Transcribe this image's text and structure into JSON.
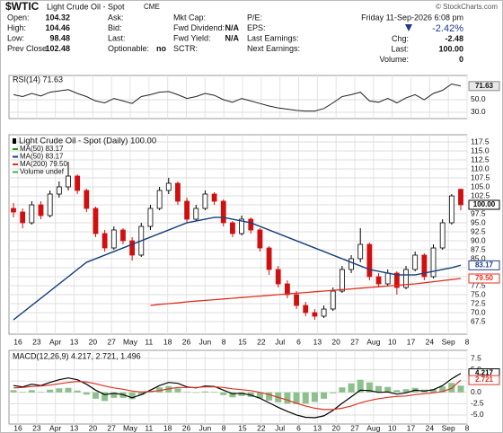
{
  "header": {
    "symbol": "$WTIC",
    "name": "Light Crude Oil - Spot",
    "exchange": "CME",
    "copyright": "© StockCharts.com",
    "date": "Friday  11-Sep-2026  6:08 pm",
    "change_pct": "-2.42%",
    "columns": [
      [
        [
          "Open:",
          "104.32"
        ],
        [
          "High:",
          "104.46"
        ],
        [
          "Low:",
          "98.48"
        ],
        [
          "Prev Close:",
          "102.48"
        ]
      ],
      [
        [
          "Ask:"
        ],
        [
          "Bid:"
        ],
        [
          "Last:"
        ],
        [
          "Optionable:",
          "no"
        ]
      ],
      [
        [
          "Mkt Cap:"
        ],
        [
          "Fwd Dividend:",
          "N/A"
        ],
        [
          "Fwd Yield:",
          "N/A"
        ],
        [
          "SCTR:"
        ]
      ],
      [
        [
          "P/E:"
        ],
        [
          "EPS:"
        ],
        [
          "Last Earnings:"
        ],
        [
          "Next Earnings:"
        ]
      ]
    ],
    "right": [
      [
        "Chg:",
        "-2.48"
      ],
      [
        "Last:",
        "100.00"
      ],
      [
        "Volume:",
        "0"
      ]
    ]
  },
  "chart_data": [
    {
      "type": "line",
      "name": "RSI(14) 71.63",
      "color": "#222222",
      "ylim": [
        20,
        88.5
      ],
      "yticks": [
        {
          "value": 50,
          "label": "50.0"
        },
        {
          "value": 30,
          "label": "30.0"
        }
      ],
      "grid": true,
      "values": [
        58,
        55,
        60,
        56,
        62,
        64,
        66,
        60,
        55,
        48,
        45,
        52,
        48,
        44,
        55,
        58,
        62,
        63,
        58,
        52,
        55,
        60,
        57,
        50,
        46,
        52,
        48,
        44,
        40,
        37,
        35,
        33,
        32,
        32,
        36,
        45,
        55,
        58,
        62,
        48,
        46,
        52,
        45,
        53,
        58,
        50,
        60,
        65,
        75,
        71.63
      ]
    },
    {
      "type": "candlestick",
      "name": "Light Crude Oil - Spot (Daily) 100.00",
      "last_label": "100.00",
      "up_color": "#000000",
      "down_color": "#d01010",
      "ylim": [
        64,
        119.5
      ],
      "grid": true,
      "yticks": [
        67.5,
        {
          "value": 70,
          "label": "70.0"
        },
        72.5,
        {
          "value": 75,
          "label": "75.0"
        },
        77.5,
        {
          "value": 80,
          "label": "80.0"
        },
        82.5,
        {
          "value": 85,
          "label": "85.0"
        },
        87.5,
        {
          "value": 90,
          "label": "90.0"
        },
        92.5,
        {
          "value": 95,
          "label": "95.0"
        },
        97.5,
        {
          "value": 100,
          "label": "100.0"
        },
        102.5,
        {
          "value": 105,
          "label": "105.0"
        },
        107.5,
        {
          "value": 110,
          "label": "110.0"
        },
        112.5,
        {
          "value": 115,
          "label": "115.0"
        },
        117.5
      ],
      "x_labels": [
        "16",
        "23",
        "Apr",
        "13",
        "20",
        "27",
        "May",
        "11",
        "18",
        "26",
        "Jun",
        "8",
        "15",
        "22",
        "Jul",
        "6",
        "13",
        "20",
        "27",
        "Aug",
        "10",
        "17",
        "24",
        "Sep",
        "8"
      ],
      "candles": [
        [
          99,
          100.5,
          96.5,
          98
        ],
        [
          98,
          99,
          93.5,
          95
        ],
        [
          95,
          101,
          94.5,
          100
        ],
        [
          100,
          101,
          96,
          97
        ],
        [
          97,
          104,
          96.5,
          103
        ],
        [
          103,
          106.5,
          102,
          105
        ],
        [
          105,
          112,
          104,
          108
        ],
        [
          108,
          108.5,
          103,
          104
        ],
        [
          104,
          104.5,
          98,
          99
        ],
        [
          99,
          99.5,
          91,
          92
        ],
        [
          92,
          93,
          87,
          88
        ],
        [
          88,
          94,
          87.5,
          93
        ],
        [
          93,
          93.5,
          89,
          90
        ],
        [
          90,
          91,
          84.5,
          86
        ],
        [
          86,
          95,
          85.5,
          94
        ],
        [
          94,
          100,
          93,
          99
        ],
        [
          99,
          105,
          98.5,
          104
        ],
        [
          104,
          107.5,
          103,
          106
        ],
        [
          106,
          106.5,
          100,
          101
        ],
        [
          101,
          102,
          95,
          96
        ],
        [
          96,
          100,
          95.5,
          99
        ],
        [
          99,
          104,
          98.5,
          103
        ],
        [
          103,
          103.5,
          100,
          101
        ],
        [
          101,
          101.5,
          94,
          95
        ],
        [
          95,
          95.5,
          91,
          92
        ],
        [
          92,
          97,
          91.5,
          96
        ],
        [
          96,
          96.5,
          92,
          93
        ],
        [
          93,
          93.5,
          87,
          88
        ],
        [
          88,
          88.5,
          80.5,
          82
        ],
        [
          82,
          83,
          77,
          78
        ],
        [
          78,
          79,
          74,
          75
        ],
        [
          75,
          76,
          71,
          72
        ],
        [
          72,
          73,
          69,
          70
        ],
        [
          70,
          71,
          68,
          69
        ],
        [
          69,
          72,
          68.5,
          71
        ],
        [
          71,
          77,
          70.5,
          76
        ],
        [
          76,
          83,
          75.5,
          82
        ],
        [
          82,
          86,
          81,
          85
        ],
        [
          85,
          93.5,
          84,
          89
        ],
        [
          89,
          89.5,
          79,
          80
        ],
        [
          80,
          81,
          77,
          78
        ],
        [
          78,
          82,
          77.5,
          81
        ],
        [
          81,
          81.5,
          75,
          77
        ],
        [
          77,
          83,
          76.5,
          82
        ],
        [
          82,
          87,
          81.5,
          86
        ],
        [
          86,
          86.5,
          79,
          80
        ],
        [
          80,
          89,
          79.5,
          88
        ],
        [
          88,
          96,
          87.5,
          95
        ],
        [
          95,
          103,
          94.5,
          102.48
        ],
        [
          104.32,
          104.46,
          98.48,
          100
        ]
      ],
      "series": [
        {
          "name": "MA(50) 83.17",
          "color": "#1a9a1a",
          "values": [
            68,
            70,
            72,
            74,
            76,
            78,
            80,
            82,
            84,
            85,
            86,
            87,
            88,
            89,
            90,
            91,
            92,
            93,
            94,
            95,
            95.5,
            96,
            96.5,
            96.5,
            96,
            95.5,
            95,
            94,
            93,
            92,
            91,
            90,
            89,
            88,
            87,
            86,
            85,
            84,
            83,
            82,
            81.5,
            81,
            80.5,
            80.5,
            80.5,
            81,
            81.5,
            82,
            82.5,
            83.17
          ]
        },
        {
          "name": "MA(50) 83.17",
          "color": "#1c3a8c",
          "values": [
            68,
            70,
            72,
            74,
            76,
            78,
            80,
            82,
            84,
            85,
            86,
            87,
            88,
            89,
            90,
            91,
            92,
            93,
            94,
            95,
            95.5,
            96,
            96.5,
            96.5,
            96,
            95.5,
            95,
            94,
            93,
            92,
            91,
            90,
            89,
            88,
            87,
            86,
            85,
            84,
            83,
            82,
            81.5,
            81,
            80.5,
            80.5,
            80.5,
            81,
            81.5,
            82,
            82.5,
            83.17
          ]
        },
        {
          "name": "MA(200) 79.50",
          "color": "#e03020",
          "last_label": "79.50",
          "values": [
            null,
            null,
            null,
            null,
            null,
            null,
            null,
            null,
            null,
            null,
            null,
            null,
            null,
            null,
            null,
            72.0,
            72.3,
            72.5,
            72.7,
            73.0,
            73.2,
            73.4,
            73.6,
            73.8,
            74.0,
            74.2,
            74.4,
            74.6,
            74.8,
            75.0,
            75.2,
            75.4,
            75.6,
            75.8,
            76.0,
            76.2,
            76.4,
            76.6,
            76.8,
            77.0,
            77.2,
            77.4,
            77.6,
            77.8,
            78.0,
            78.3,
            78.6,
            78.9,
            79.2,
            79.5
          ]
        },
        {
          "name": "Volume undef",
          "color": "#44aa66"
        }
      ]
    },
    {
      "type": "macd",
      "name": "MACD(12,26,9) 4.217, 2.721, 1.496",
      "ylim": [
        -7,
        9.3
      ],
      "grid": true,
      "yticks": [
        7.5,
        {
          "value": 5,
          "label": "5.0"
        },
        2.5,
        {
          "value": 0,
          "label": "0.0"
        },
        -2.5,
        {
          "value": -5,
          "label": "-5.0"
        }
      ],
      "series": [
        {
          "color": "#8cc08c",
          "values": [
            0.5,
            0.1,
            0.5,
            0.1,
            0.6,
            0.9,
            1.0,
            0.4,
            -0.5,
            -1.4,
            -1.9,
            -1.2,
            -1.2,
            -1.5,
            -0.6,
            0.3,
            1.1,
            1.4,
            0.9,
            0.1,
            -0.1,
            0.2,
            0.1,
            -0.6,
            -1.1,
            -0.8,
            -1.0,
            -1.3,
            -1.8,
            -2.2,
            -2.5,
            -2.6,
            -2.5,
            -2.1,
            -1.4,
            -0.2,
            1.1,
            2.0,
            2.8,
            2.2,
            1.4,
            1.2,
            0.5,
            0.7,
            1.0,
            0.6,
            0.7,
            1.3,
            2.1,
            1.496
          ]
        },
        {
          "color": "#000000",
          "values": [
            1.5,
            1.2,
            1.8,
            1.5,
            2.2,
            2.8,
            3.2,
            2.8,
            1.8,
            0.5,
            -0.5,
            -0.2,
            -0.5,
            -1.2,
            -0.5,
            0.5,
            1.5,
            2.2,
            2.0,
            1.2,
            1.0,
            1.4,
            1.3,
            0.5,
            -0.3,
            -0.2,
            -0.6,
            -1.3,
            -2.3,
            -3.3,
            -4.2,
            -5.0,
            -5.5,
            -5.6,
            -5.2,
            -4.0,
            -2.4,
            -1.0,
            0.5,
            0.4,
            0.0,
            0.1,
            -0.4,
            -0.1,
            0.5,
            0.3,
            0.6,
            1.5,
            3.0,
            4.217
          ]
        },
        {
          "color": "#e03020",
          "values": [
            1.0,
            1.1,
            1.3,
            1.4,
            1.6,
            1.9,
            2.2,
            2.4,
            2.3,
            1.9,
            1.4,
            1.0,
            0.7,
            0.3,
            0.1,
            0.2,
            0.4,
            0.8,
            1.1,
            1.1,
            1.1,
            1.2,
            1.2,
            1.1,
            0.8,
            0.6,
            0.4,
            0.0,
            -0.5,
            -1.1,
            -1.7,
            -2.4,
            -3.0,
            -3.5,
            -3.8,
            -3.8,
            -3.5,
            -3.0,
            -2.3,
            -1.8,
            -1.4,
            -1.1,
            -0.9,
            -0.8,
            -0.5,
            -0.3,
            -0.1,
            0.2,
            0.9,
            2.721
          ]
        }
      ]
    }
  ]
}
